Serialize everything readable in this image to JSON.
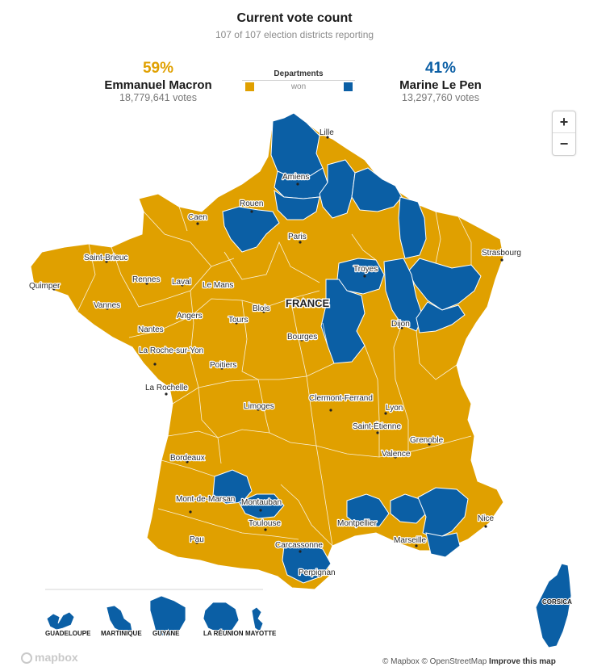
{
  "header": {
    "title": "Current vote count",
    "subtitle": "107 of 107 election districts reporting"
  },
  "candidates": [
    {
      "pct": "59%",
      "name": "Emmanuel Macron",
      "votes": "18,779,641 votes",
      "color": "#e0a000"
    },
    {
      "pct": "41%",
      "name": "Marine Le Pen",
      "votes": "13,297,760 votes",
      "color": "#0b5fa5"
    }
  ],
  "legend": {
    "title": "Departments",
    "won_label": "won"
  },
  "zoom": {
    "in": "+",
    "out": "−"
  },
  "map": {
    "country_label": "FRANCE",
    "colors": {
      "macron": "#e0a000",
      "lepen": "#0b5fa5",
      "border": "#ffffff"
    },
    "cities": [
      "Lille",
      "Amiens",
      "Rouen",
      "Caen",
      "Paris",
      "Strasbourg",
      "Saint-Brieuc",
      "Quimper",
      "Rennes",
      "Laval",
      "Le Mans",
      "Vannes",
      "Angers",
      "Troyes",
      "Nantes",
      "Blois",
      "Tours",
      "La Roche-sur-Yon",
      "Bourges",
      "Dijon",
      "Poitiers",
      "La Rochelle",
      "Limoges",
      "Clermont-Ferrand",
      "Lyon",
      "Saint-Étienne",
      "Grenoble",
      "Valence",
      "Bordeaux",
      "Mont-de-Marsan",
      "Montauban",
      "Toulouse",
      "Montpellier",
      "Nice",
      "Marseille",
      "Pau",
      "Carcassonne",
      "Perpignan"
    ],
    "territories": [
      "GUADELOUPE",
      "MARTINIQUE",
      "GUYANE",
      "LA RÉUNION",
      "MAYOTTE",
      "CORSICA"
    ]
  },
  "attribution": {
    "mapbox": "© Mapbox",
    "osm": "© OpenStreetMap",
    "improve": "Improve this map",
    "logo": "mapbox"
  }
}
